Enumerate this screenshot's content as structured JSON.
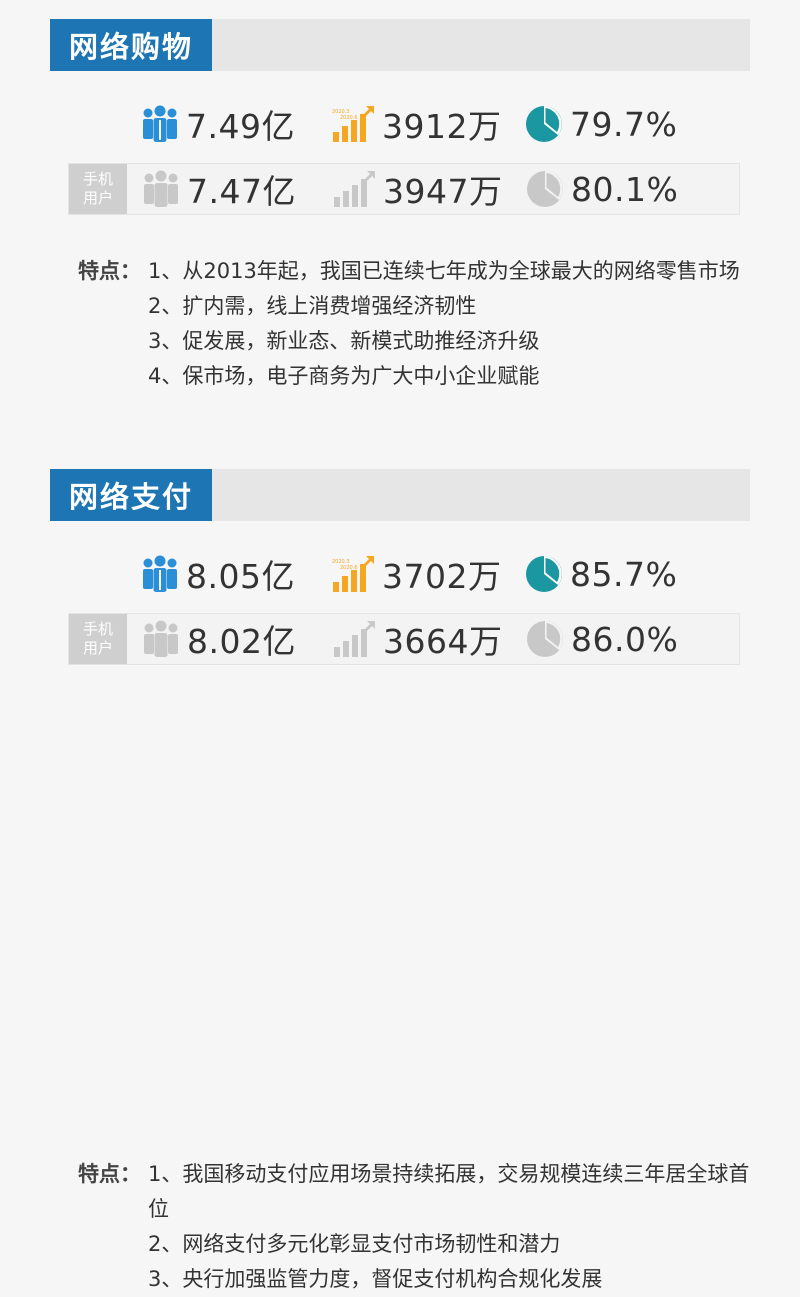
{
  "sections": [
    {
      "title": "网络购物",
      "total": {
        "users": "7.49亿",
        "growth": "3912万",
        "rate": "79.7%"
      },
      "mobile": {
        "label_line1": "手机",
        "label_line2": "用户",
        "users": "7.47亿",
        "growth": "3947万",
        "rate": "80.1%"
      },
      "features_label": "特点：",
      "features": [
        "1、从2013年起，我国已连续七年成为全球最大的网络零售市场",
        "2、扩内需，线上消费增强经济韧性",
        "3、促发展，新业态、新模式助推经济升级",
        "4、保市场，电子商务为广大中小企业赋能"
      ]
    },
    {
      "title": "网络支付",
      "total": {
        "users": "8.05亿",
        "growth": "3702万",
        "rate": "85.7%"
      },
      "mobile": {
        "label_line1": "手机",
        "label_line2": "用户",
        "users": "8.02亿",
        "growth": "3664万",
        "rate": "86.0%"
      },
      "features_label": "特点：",
      "features": [
        "1、我国移动支付应用场景持续拓展，交易规模连续三年居全球首位",
        "2、网络支付多元化彰显支付市场韧性和潜力",
        "3、央行加强监管力度，督促支付机构合规化发展"
      ]
    }
  ],
  "icons": {
    "users": "users-icon",
    "growth": "growth-bar-chart-icon",
    "rate": "pie-chart-icon"
  },
  "colors": {
    "accent": "#1d75b3",
    "users_blue": "#2a8fd6",
    "growth_orange": "#f5a623",
    "pie_teal": "#1a97a0",
    "mobile_gray": "#c8c8c8",
    "header_bg": "#e6e6e6"
  }
}
